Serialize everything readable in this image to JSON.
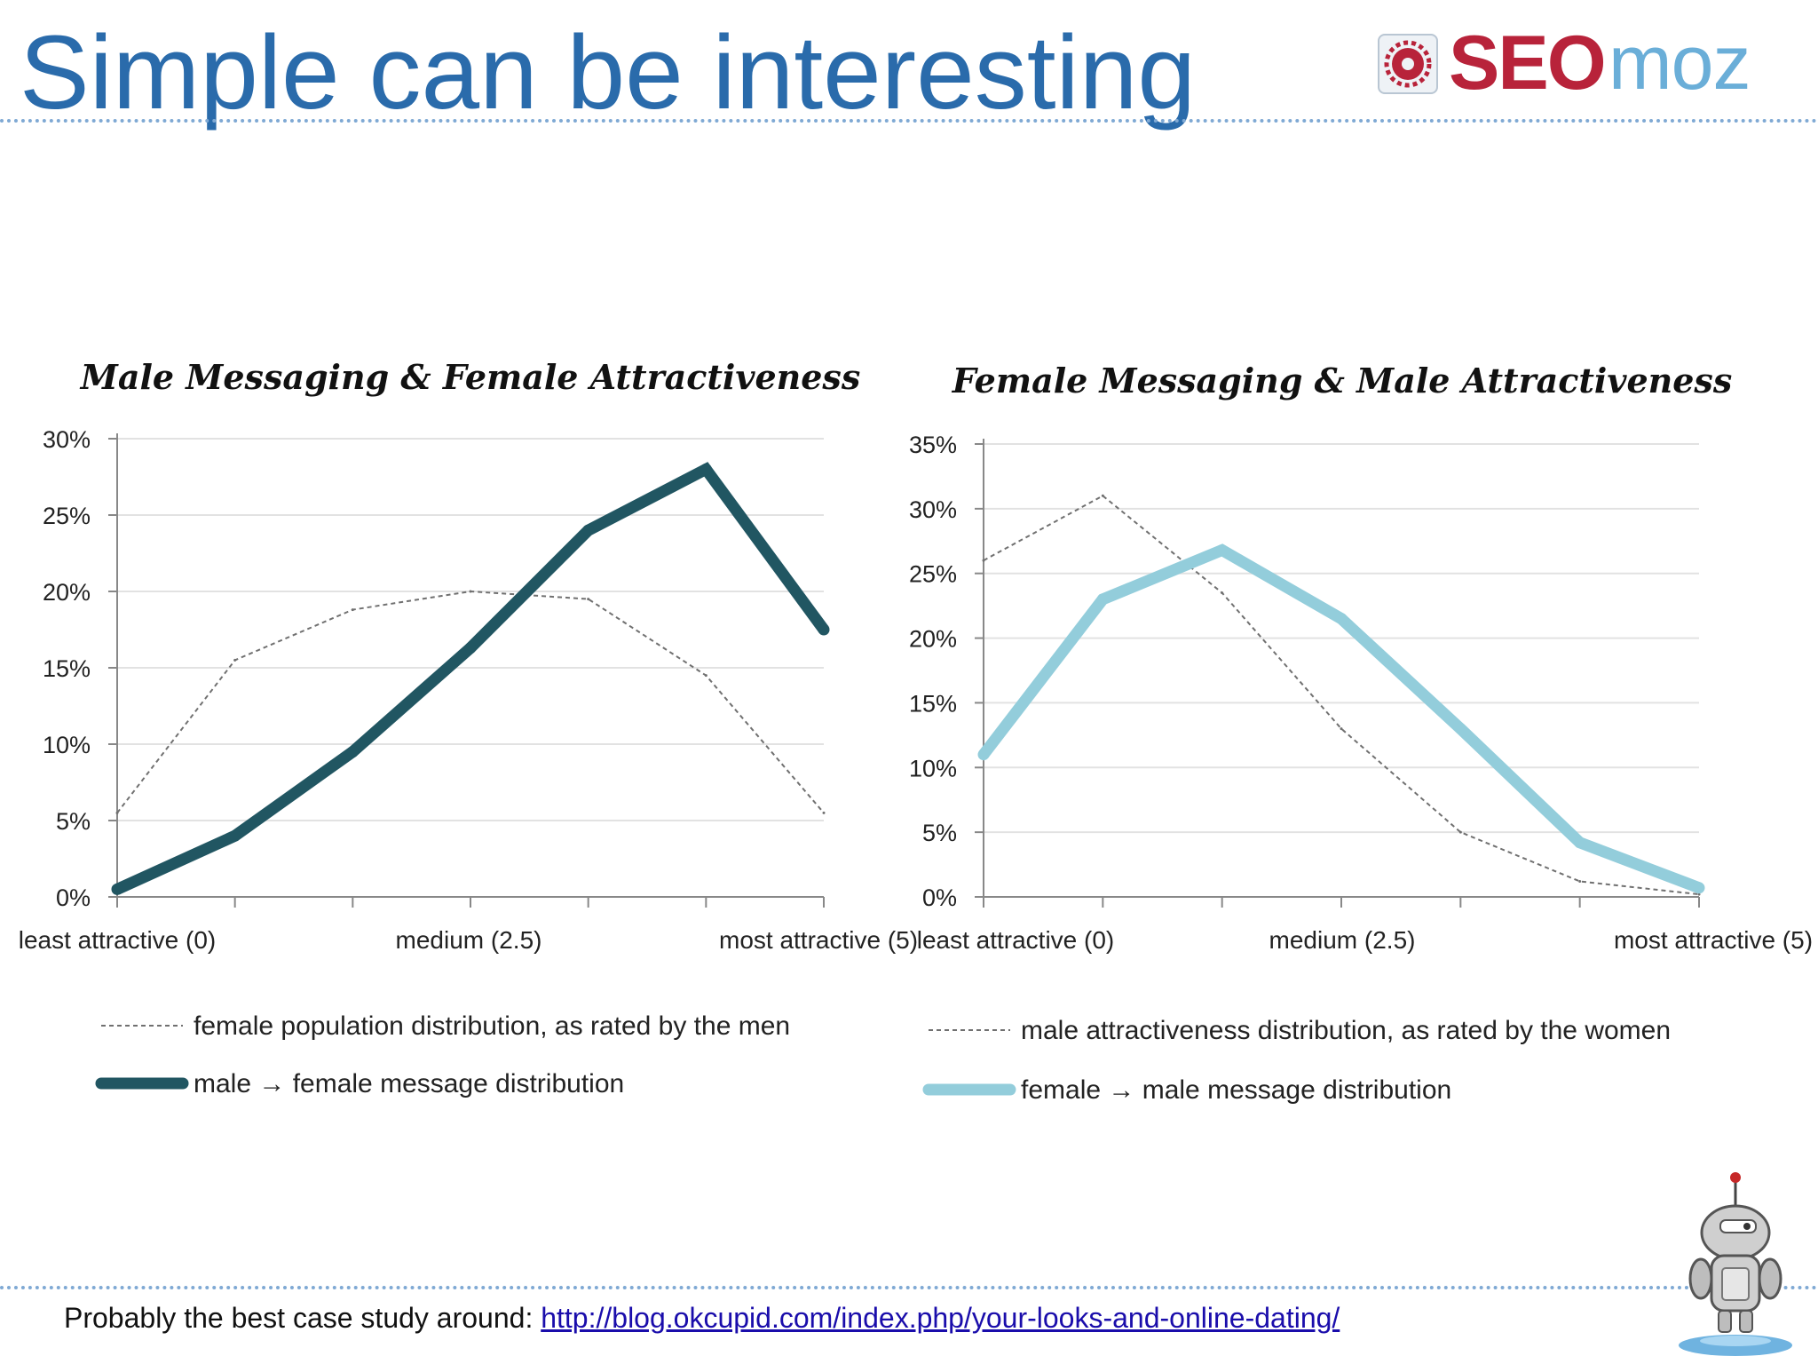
{
  "slide": {
    "title": "Simple can be interesting",
    "logo_text_seo": "SEO",
    "logo_text_moz": "moz",
    "footer_text": "Probably the best case study around: ",
    "footer_link": "http://blog.okcupid.com/index.php/your-looks-and-online-dating/"
  },
  "colors": {
    "title": "#2a6bab",
    "male_messages": "#215662",
    "female_messages": "#93cddb",
    "population": "#707070",
    "grid": "#e2e2e2"
  },
  "chart_data": [
    {
      "type": "line",
      "title": "Male Messaging & Female Attractiveness",
      "x": [
        0,
        1,
        2,
        3,
        4,
        5,
        6
      ],
      "tick_labels": [
        "least attractive (0)",
        "medium (2.5)",
        "most attractive (5)"
      ],
      "ylim": [
        0,
        30
      ],
      "yticks": [
        "0%",
        "5%",
        "10%",
        "15%",
        "20%",
        "25%",
        "30%"
      ],
      "grid": true,
      "legend_placement": "bottom",
      "series": [
        {
          "name": "female population  distribution, as rated by the men",
          "style": "dotted",
          "values": [
            5.5,
            15.5,
            18.8,
            20.0,
            19.5,
            14.5,
            5.5
          ]
        },
        {
          "name": "male → female message distribution",
          "style": "solid",
          "values": [
            0.5,
            4.0,
            9.5,
            16.3,
            24.0,
            28.0,
            17.5
          ]
        }
      ]
    },
    {
      "type": "line",
      "title": "Female Messaging & Male Attractiveness",
      "x": [
        0,
        1,
        2,
        3,
        4,
        5,
        6
      ],
      "tick_labels": [
        "least attractive (0)",
        "medium (2.5)",
        "most attractive (5)"
      ],
      "ylim": [
        0,
        35
      ],
      "yticks": [
        "0%",
        "5%",
        "10%",
        "15%",
        "20%",
        "25%",
        "30%",
        "35%"
      ],
      "grid": true,
      "legend_placement": "bottom",
      "series": [
        {
          "name": "male attractiveness distribution, as rated by the women",
          "style": "dotted",
          "values": [
            26.0,
            31.0,
            23.5,
            13.0,
            5.0,
            1.2,
            0.2
          ]
        },
        {
          "name": "female → male message distribution",
          "style": "solid",
          "values": [
            11.0,
            23.0,
            26.8,
            21.5,
            13.0,
            4.2,
            0.7
          ]
        }
      ]
    }
  ]
}
